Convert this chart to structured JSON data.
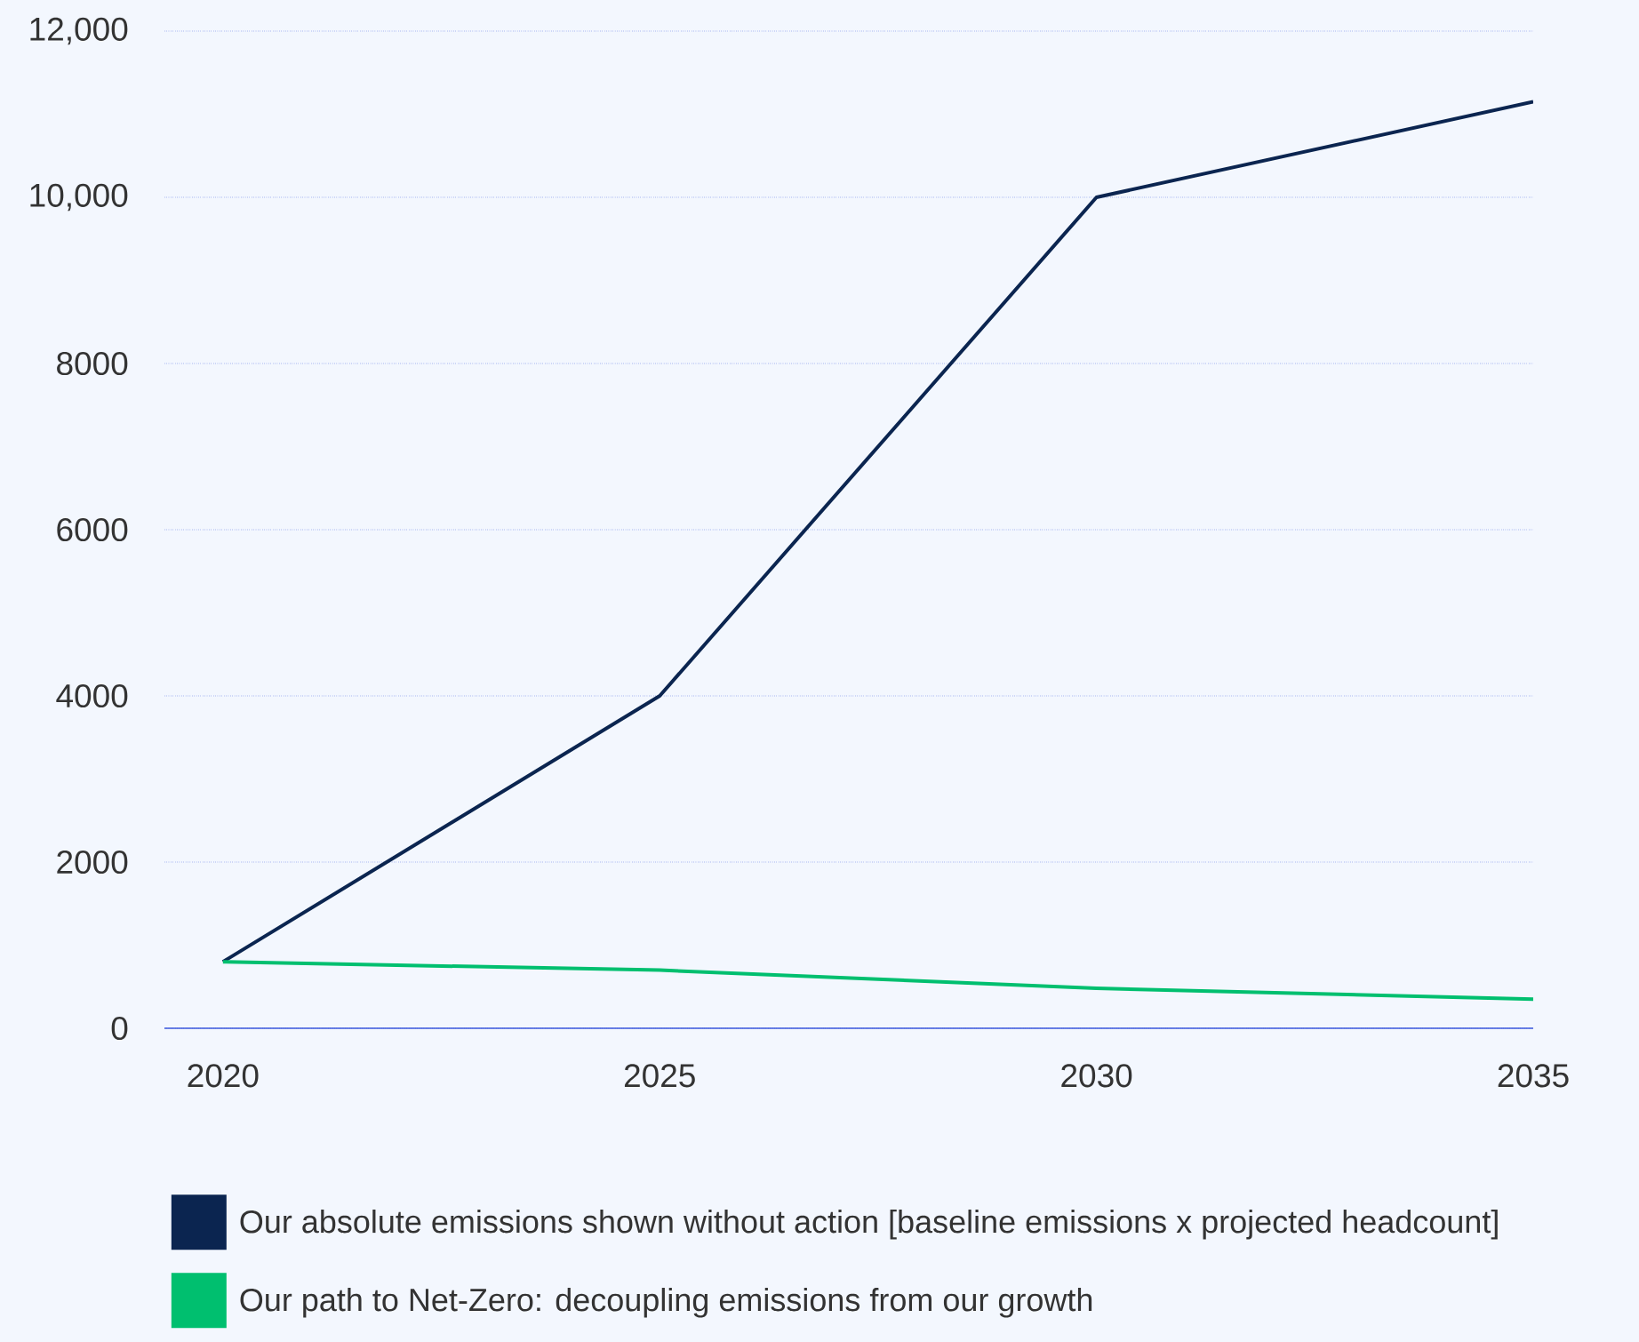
{
  "chart_data": {
    "type": "line",
    "x": [
      2020,
      2025,
      2030,
      2035
    ],
    "series": [
      {
        "name": "Our absolute emissions shown without action [baseline emissions x projected headcount]",
        "color": "#0b2550",
        "values": [
          800,
          4000,
          10000,
          11150
        ]
      },
      {
        "name": "Our path to Net-Zero: decoupling emissions from our growth",
        "color": "#00bf6f",
        "values": [
          800,
          700,
          480,
          350
        ]
      }
    ],
    "xlim": [
      2019.33,
      2035
    ],
    "ylim": [
      0,
      12000
    ],
    "xticks": [
      2020,
      2025,
      2030,
      2035
    ],
    "yticks": [
      0,
      2000,
      4000,
      6000,
      8000,
      {
        "value": 10000,
        "label": "10,000"
      },
      {
        "value": 12000,
        "label": "12,000"
      }
    ],
    "grid": "y",
    "legend": "bottom",
    "marker": "none",
    "line_style": "solid"
  }
}
